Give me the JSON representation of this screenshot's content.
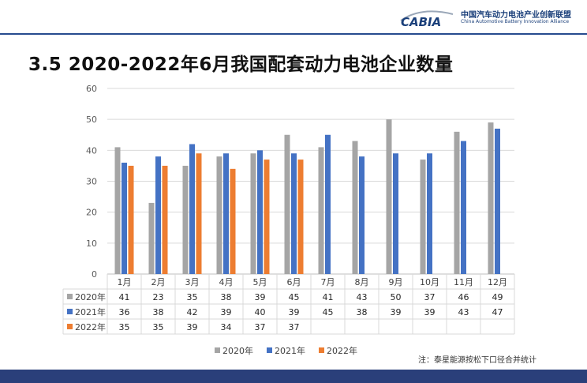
{
  "header": {
    "logo_word": "CABIA",
    "org_cn": "中国汽车动力电池产业创新联盟",
    "org_en": "China Automotive Battery Innovation Alliance"
  },
  "title": "3.5 2020-2022年6月我国配套动力电池企业数量",
  "note": "注：泰星能源按松下口径合并统计",
  "colors": {
    "s2020": "#a5a5a5",
    "s2021": "#4472c4",
    "s2022": "#ed7d31",
    "grid": "#d9d9d9",
    "brand": "#274b8f"
  },
  "chart_data": {
    "type": "bar",
    "categories": [
      "1月",
      "2月",
      "3月",
      "4月",
      "5月",
      "6月",
      "7月",
      "8月",
      "9月",
      "10月",
      "11月",
      "12月"
    ],
    "series": [
      {
        "name": "2020年",
        "values": [
          41,
          23,
          35,
          38,
          39,
          45,
          41,
          43,
          50,
          37,
          46,
          49
        ]
      },
      {
        "name": "2021年",
        "values": [
          36,
          38,
          42,
          39,
          40,
          39,
          45,
          38,
          39,
          39,
          43,
          47
        ]
      },
      {
        "name": "2022年",
        "values": [
          35,
          35,
          39,
          34,
          37,
          37,
          null,
          null,
          null,
          null,
          null,
          null
        ]
      }
    ],
    "ylim": [
      0,
      60
    ],
    "yticks": [
      "0",
      "10",
      "20",
      "30",
      "40",
      "50",
      "60"
    ],
    "grid": true,
    "legend": "bottom",
    "data_table": true
  }
}
